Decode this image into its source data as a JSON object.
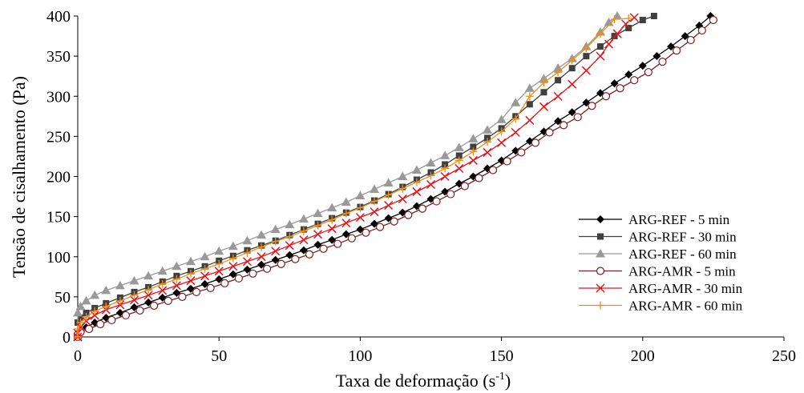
{
  "chart_data": {
    "type": "line",
    "title": "",
    "xlabel": "Taxa de deformação (s",
    "xlabel_sup": "-1",
    "xlabel_suffix": ")",
    "ylabel": "Tensão de cisalhamento (Pa)",
    "xlim": [
      0,
      250
    ],
    "ylim": [
      0,
      400
    ],
    "xticks": [
      0,
      50,
      100,
      150,
      200,
      250
    ],
    "yticks": [
      0,
      50,
      100,
      150,
      200,
      250,
      300,
      350,
      400
    ],
    "grid": false,
    "legend_position": "bottom-right",
    "series": [
      {
        "name": "ARG-REF - 5 min",
        "color": "#000000",
        "marker": "diamond",
        "points": [
          [
            0,
            0
          ],
          [
            0,
            4
          ],
          [
            1,
            8
          ],
          [
            3,
            12
          ],
          [
            6,
            18
          ],
          [
            10,
            24
          ],
          [
            15,
            30
          ],
          [
            20,
            37
          ],
          [
            25,
            43
          ],
          [
            30,
            49
          ],
          [
            35,
            55
          ],
          [
            40,
            60
          ],
          [
            45,
            66
          ],
          [
            50,
            72
          ],
          [
            55,
            78
          ],
          [
            60,
            84
          ],
          [
            65,
            90
          ],
          [
            70,
            96
          ],
          [
            75,
            102
          ],
          [
            80,
            108
          ],
          [
            85,
            115
          ],
          [
            90,
            121
          ],
          [
            95,
            128
          ],
          [
            100,
            134
          ],
          [
            105,
            141
          ],
          [
            110,
            148
          ],
          [
            115,
            155
          ],
          [
            120,
            163
          ],
          [
            125,
            172
          ],
          [
            130,
            181
          ],
          [
            135,
            191
          ],
          [
            140,
            200
          ],
          [
            145,
            210
          ],
          [
            150,
            220
          ],
          [
            155,
            232
          ],
          [
            160,
            244
          ],
          [
            165,
            256
          ],
          [
            170,
            269
          ],
          [
            175,
            280
          ],
          [
            180,
            292
          ],
          [
            185,
            304
          ],
          [
            190,
            316
          ],
          [
            195,
            327
          ],
          [
            200,
            338
          ],
          [
            205,
            350
          ],
          [
            210,
            362
          ],
          [
            215,
            375
          ],
          [
            220,
            388
          ],
          [
            224,
            400
          ]
        ]
      },
      {
        "name": "ARG-REF - 30 min",
        "color": "#404040",
        "marker": "square",
        "points": [
          [
            0,
            0
          ],
          [
            0,
            18
          ],
          [
            1,
            24
          ],
          [
            3,
            30
          ],
          [
            6,
            36
          ],
          [
            10,
            42
          ],
          [
            15,
            49
          ],
          [
            20,
            56
          ],
          [
            25,
            62
          ],
          [
            30,
            69
          ],
          [
            35,
            76
          ],
          [
            40,
            82
          ],
          [
            45,
            88
          ],
          [
            50,
            95
          ],
          [
            55,
            101
          ],
          [
            60,
            108
          ],
          [
            65,
            114
          ],
          [
            70,
            120
          ],
          [
            75,
            127
          ],
          [
            80,
            134
          ],
          [
            85,
            141
          ],
          [
            90,
            148
          ],
          [
            95,
            155
          ],
          [
            100,
            162
          ],
          [
            105,
            170
          ],
          [
            110,
            178
          ],
          [
            115,
            187
          ],
          [
            120,
            196
          ],
          [
            125,
            205
          ],
          [
            130,
            215
          ],
          [
            135,
            226
          ],
          [
            140,
            237
          ],
          [
            145,
            248
          ],
          [
            150,
            260
          ],
          [
            155,
            275
          ],
          [
            160,
            290
          ],
          [
            165,
            305
          ],
          [
            170,
            320
          ],
          [
            175,
            335
          ],
          [
            180,
            350
          ],
          [
            185,
            362
          ],
          [
            190,
            375
          ],
          [
            195,
            385
          ],
          [
            200,
            395
          ],
          [
            204,
            400
          ]
        ]
      },
      {
        "name": "ARG-REF - 60 min",
        "color": "#999999",
        "marker": "triangle",
        "points": [
          [
            0,
            0
          ],
          [
            0,
            30
          ],
          [
            1,
            38
          ],
          [
            3,
            45
          ],
          [
            6,
            52
          ],
          [
            10,
            58
          ],
          [
            15,
            64
          ],
          [
            20,
            70
          ],
          [
            25,
            76
          ],
          [
            30,
            82
          ],
          [
            35,
            88
          ],
          [
            40,
            94
          ],
          [
            45,
            100
          ],
          [
            50,
            107
          ],
          [
            55,
            113
          ],
          [
            60,
            120
          ],
          [
            65,
            127
          ],
          [
            70,
            134
          ],
          [
            75,
            140
          ],
          [
            80,
            147
          ],
          [
            85,
            154
          ],
          [
            90,
            161
          ],
          [
            95,
            168
          ],
          [
            100,
            176
          ],
          [
            105,
            184
          ],
          [
            110,
            192
          ],
          [
            115,
            200
          ],
          [
            120,
            208
          ],
          [
            125,
            217
          ],
          [
            130,
            226
          ],
          [
            135,
            236
          ],
          [
            140,
            247
          ],
          [
            145,
            258
          ],
          [
            150,
            271
          ],
          [
            155,
            292
          ],
          [
            160,
            310
          ],
          [
            165,
            322
          ],
          [
            170,
            335
          ],
          [
            175,
            347
          ],
          [
            180,
            362
          ],
          [
            185,
            380
          ],
          [
            188,
            392
          ],
          [
            191,
            400
          ]
        ]
      },
      {
        "name": "ARG-AMR - 5 min",
        "color": "#7a1f1f",
        "marker": "circle",
        "points": [
          [
            0,
            0
          ],
          [
            0,
            3
          ],
          [
            1,
            6
          ],
          [
            4,
            10
          ],
          [
            8,
            16
          ],
          [
            12,
            21
          ],
          [
            17,
            27
          ],
          [
            22,
            33
          ],
          [
            27,
            39
          ],
          [
            32,
            45
          ],
          [
            37,
            50
          ],
          [
            42,
            56
          ],
          [
            47,
            61
          ],
          [
            52,
            67
          ],
          [
            57,
            73
          ],
          [
            62,
            79
          ],
          [
            67,
            85
          ],
          [
            72,
            91
          ],
          [
            77,
            97
          ],
          [
            82,
            103
          ],
          [
            87,
            110
          ],
          [
            92,
            116
          ],
          [
            97,
            123
          ],
          [
            102,
            130
          ],
          [
            107,
            137
          ],
          [
            112,
            144
          ],
          [
            117,
            152
          ],
          [
            122,
            160
          ],
          [
            127,
            169
          ],
          [
            132,
            178
          ],
          [
            137,
            188
          ],
          [
            142,
            198
          ],
          [
            147,
            208
          ],
          [
            152,
            219
          ],
          [
            157,
            230
          ],
          [
            162,
            242
          ],
          [
            167,
            255
          ],
          [
            172,
            264
          ],
          [
            177,
            274
          ],
          [
            182,
            288
          ],
          [
            187,
            300
          ],
          [
            192,
            310
          ],
          [
            197,
            320
          ],
          [
            202,
            330
          ],
          [
            207,
            343
          ],
          [
            212,
            357
          ],
          [
            217,
            370
          ],
          [
            221,
            382
          ],
          [
            225,
            395
          ]
        ]
      },
      {
        "name": "ARG-AMR - 30 min",
        "color": "#e8141c",
        "marker": "x",
        "points": [
          [
            0,
            0
          ],
          [
            0,
            5
          ],
          [
            1,
            12
          ],
          [
            3,
            20
          ],
          [
            6,
            27
          ],
          [
            10,
            34
          ],
          [
            15,
            40
          ],
          [
            20,
            46
          ],
          [
            25,
            52
          ],
          [
            30,
            58
          ],
          [
            35,
            64
          ],
          [
            40,
            70
          ],
          [
            45,
            76
          ],
          [
            50,
            82
          ],
          [
            55,
            88
          ],
          [
            60,
            94
          ],
          [
            65,
            100
          ],
          [
            70,
            107
          ],
          [
            75,
            114
          ],
          [
            80,
            121
          ],
          [
            85,
            128
          ],
          [
            90,
            135
          ],
          [
            95,
            142
          ],
          [
            100,
            149
          ],
          [
            105,
            156
          ],
          [
            110,
            164
          ],
          [
            115,
            172
          ],
          [
            120,
            181
          ],
          [
            125,
            190
          ],
          [
            130,
            200
          ],
          [
            135,
            210
          ],
          [
            140,
            220
          ],
          [
            145,
            230
          ],
          [
            150,
            242
          ],
          [
            155,
            255
          ],
          [
            160,
            270
          ],
          [
            165,
            287
          ],
          [
            170,
            300
          ],
          [
            175,
            315
          ],
          [
            180,
            332
          ],
          [
            185,
            350
          ],
          [
            188,
            365
          ],
          [
            191,
            378
          ],
          [
            194,
            390
          ],
          [
            197,
            398
          ]
        ]
      },
      {
        "name": "ARG-AMR - 60 min",
        "color": "#f08c1a",
        "marker": "plus",
        "points": [
          [
            0,
            0
          ],
          [
            0,
            10
          ],
          [
            1,
            18
          ],
          [
            3,
            25
          ],
          [
            6,
            32
          ],
          [
            10,
            38
          ],
          [
            15,
            45
          ],
          [
            20,
            52
          ],
          [
            25,
            59
          ],
          [
            30,
            66
          ],
          [
            35,
            72
          ],
          [
            40,
            79
          ],
          [
            45,
            85
          ],
          [
            50,
            91
          ],
          [
            55,
            98
          ],
          [
            60,
            105
          ],
          [
            65,
            112
          ],
          [
            70,
            119
          ],
          [
            75,
            125
          ],
          [
            80,
            132
          ],
          [
            85,
            139
          ],
          [
            90,
            146
          ],
          [
            95,
            154
          ],
          [
            100,
            161
          ],
          [
            105,
            169
          ],
          [
            110,
            177
          ],
          [
            115,
            185
          ],
          [
            120,
            193
          ],
          [
            125,
            201
          ],
          [
            130,
            210
          ],
          [
            135,
            220
          ],
          [
            140,
            231
          ],
          [
            145,
            243
          ],
          [
            150,
            256
          ],
          [
            155,
            272
          ],
          [
            160,
            300
          ],
          [
            165,
            317
          ],
          [
            170,
            330
          ],
          [
            175,
            345
          ],
          [
            180,
            360
          ],
          [
            185,
            378
          ],
          [
            190,
            396
          ],
          [
            195,
            397
          ]
        ]
      }
    ]
  }
}
